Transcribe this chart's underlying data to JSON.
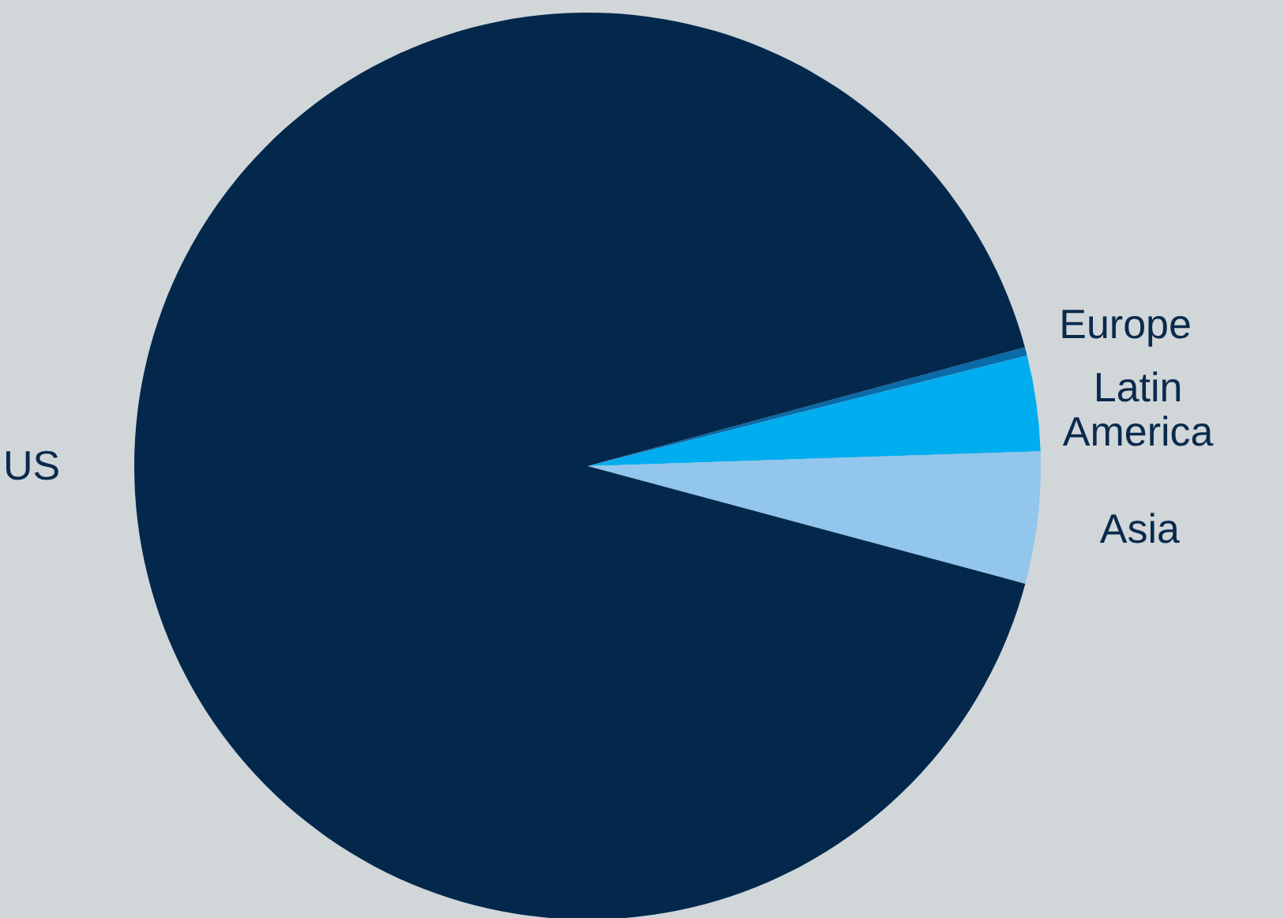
{
  "chart_data": {
    "type": "pie",
    "categories": [
      "Europe",
      "Latin America",
      "Asia",
      "US"
    ],
    "values": [
      0.3,
      3.4,
      4.7,
      91.6
    ],
    "colors": [
      "#0b6aa8",
      "#00aeef",
      "#92c6ec",
      "#03284c"
    ]
  }
}
